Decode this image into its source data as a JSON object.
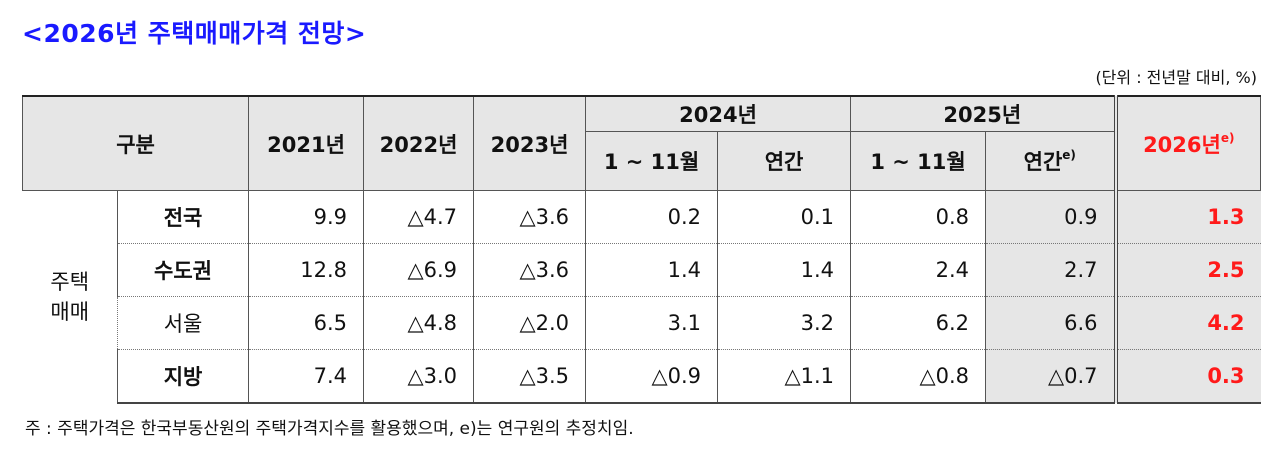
{
  "title": "<2026년 주택매매가격 전망>",
  "unit": "(단위 : 전년말 대비, %)",
  "header": {
    "category": "구분",
    "y2021": "2021년",
    "y2022": "2022년",
    "y2023": "2023년",
    "y2024": "2024년",
    "y2025": "2025년",
    "y2026": "2026년",
    "jan_nov": "1 ~ 11월",
    "annual": "연간",
    "estimate_mark": "e)"
  },
  "group_label": "주택\n매매",
  "rows": [
    {
      "label": "전국",
      "bold": true,
      "values": [
        "9.9",
        "△4.7",
        "△3.6",
        "0.2",
        "0.1",
        "0.8",
        "0.9"
      ],
      "forecast": "1.3"
    },
    {
      "label": "수도권",
      "bold": true,
      "values": [
        "12.8",
        "△6.9",
        "△3.6",
        "1.4",
        "1.4",
        "2.4",
        "2.7"
      ],
      "forecast": "2.5"
    },
    {
      "label": "서울",
      "bold": false,
      "values": [
        "6.5",
        "△4.8",
        "△2.0",
        "3.1",
        "3.2",
        "6.2",
        "6.6"
      ],
      "forecast": "4.2"
    },
    {
      "label": "지방",
      "bold": true,
      "values": [
        "7.4",
        "△3.0",
        "△3.5",
        "△0.9",
        "△1.1",
        "△0.8",
        "△0.7"
      ],
      "forecast": "0.3"
    }
  ],
  "note": "주 : 주택가격은 한국부동산원의 주택가격지수를 활용했으며, e)는 연구원의 추정치임.",
  "colors": {
    "title": "#1a1aff",
    "forecast": "#ff1a1a",
    "header_bg": "#e6e6e6"
  }
}
